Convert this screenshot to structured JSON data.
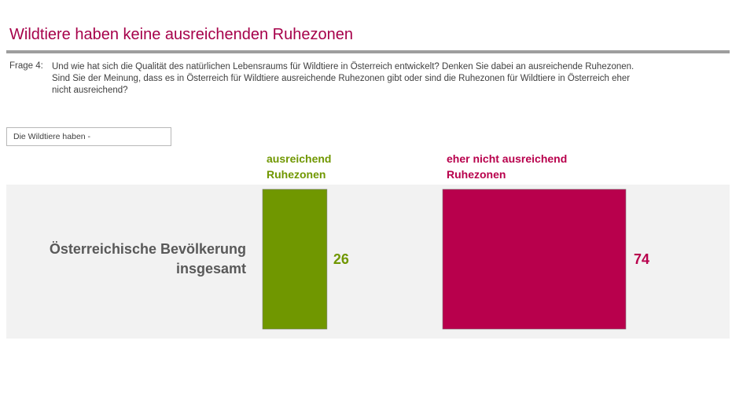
{
  "page": {
    "title": "Wildtiere haben keine ausreichenden Ruhezonen",
    "question_label": "Frage  4:",
    "question_lines": [
      "Und wie hat sich die Qualität des natürlichen Lebensraums für Wildtiere in Österreich entwickelt? Denken Sie dabei an ausreichende Ruhezonen.",
      "Sind Sie der Meinung, dass es in Österreich für Wildtiere ausreichende Ruhezonen gibt oder sind die Ruhezonen für Wildtiere in Österreich eher",
      "nicht ausreichend?"
    ],
    "filter_label": "Die Wildtiere haben -",
    "row_label_lines": [
      "Österreichische Bevölkerung",
      "insgesamt"
    ]
  },
  "colors": {
    "title": "#a6004a",
    "ausreichend": "#709700",
    "nicht_ausreichend": "#b8004c",
    "row_label": "#595959",
    "panel": "#f2f2f2"
  },
  "chart_data": {
    "type": "bar",
    "categories": [
      "Österreichische Bevölkerung insgesamt"
    ],
    "series": [
      {
        "name_lines": [
          "ausreichend",
          "Ruhezonen"
        ],
        "values": [
          26
        ],
        "color": "#709700"
      },
      {
        "name_lines": [
          "eher nicht ausreichend",
          "Ruhezonen"
        ],
        "values": [
          74
        ],
        "color": "#b8004c"
      }
    ]
  }
}
